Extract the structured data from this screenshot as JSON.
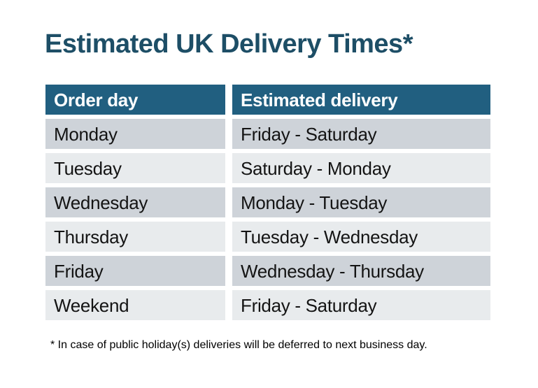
{
  "page": {
    "title": "Estimated UK Delivery Times*"
  },
  "table": {
    "columns": [
      "Order day",
      "Estimated delivery"
    ],
    "rows": [
      {
        "order_day": "Monday",
        "estimated_delivery": "Friday - Saturday"
      },
      {
        "order_day": "Tuesday",
        "estimated_delivery": "Saturday - Monday"
      },
      {
        "order_day": "Wednesday",
        "estimated_delivery": "Monday - Tuesday"
      },
      {
        "order_day": "Thursday",
        "estimated_delivery": "Tuesday - Wednesday"
      },
      {
        "order_day": "Friday",
        "estimated_delivery": "Wednesday - Thursday"
      },
      {
        "order_day": "Weekend",
        "estimated_delivery": "Friday - Saturday"
      }
    ]
  },
  "footnote": "* In case of public holiday(s) deliveries will be deferred to next business day.",
  "colors": {
    "title": "#1d4e66",
    "header_bg": "#215f80",
    "header_text": "#ffffff",
    "row_dark": "#ced3d9",
    "row_light": "#e8ebed",
    "cell_text": "#141414",
    "background": "#ffffff"
  }
}
